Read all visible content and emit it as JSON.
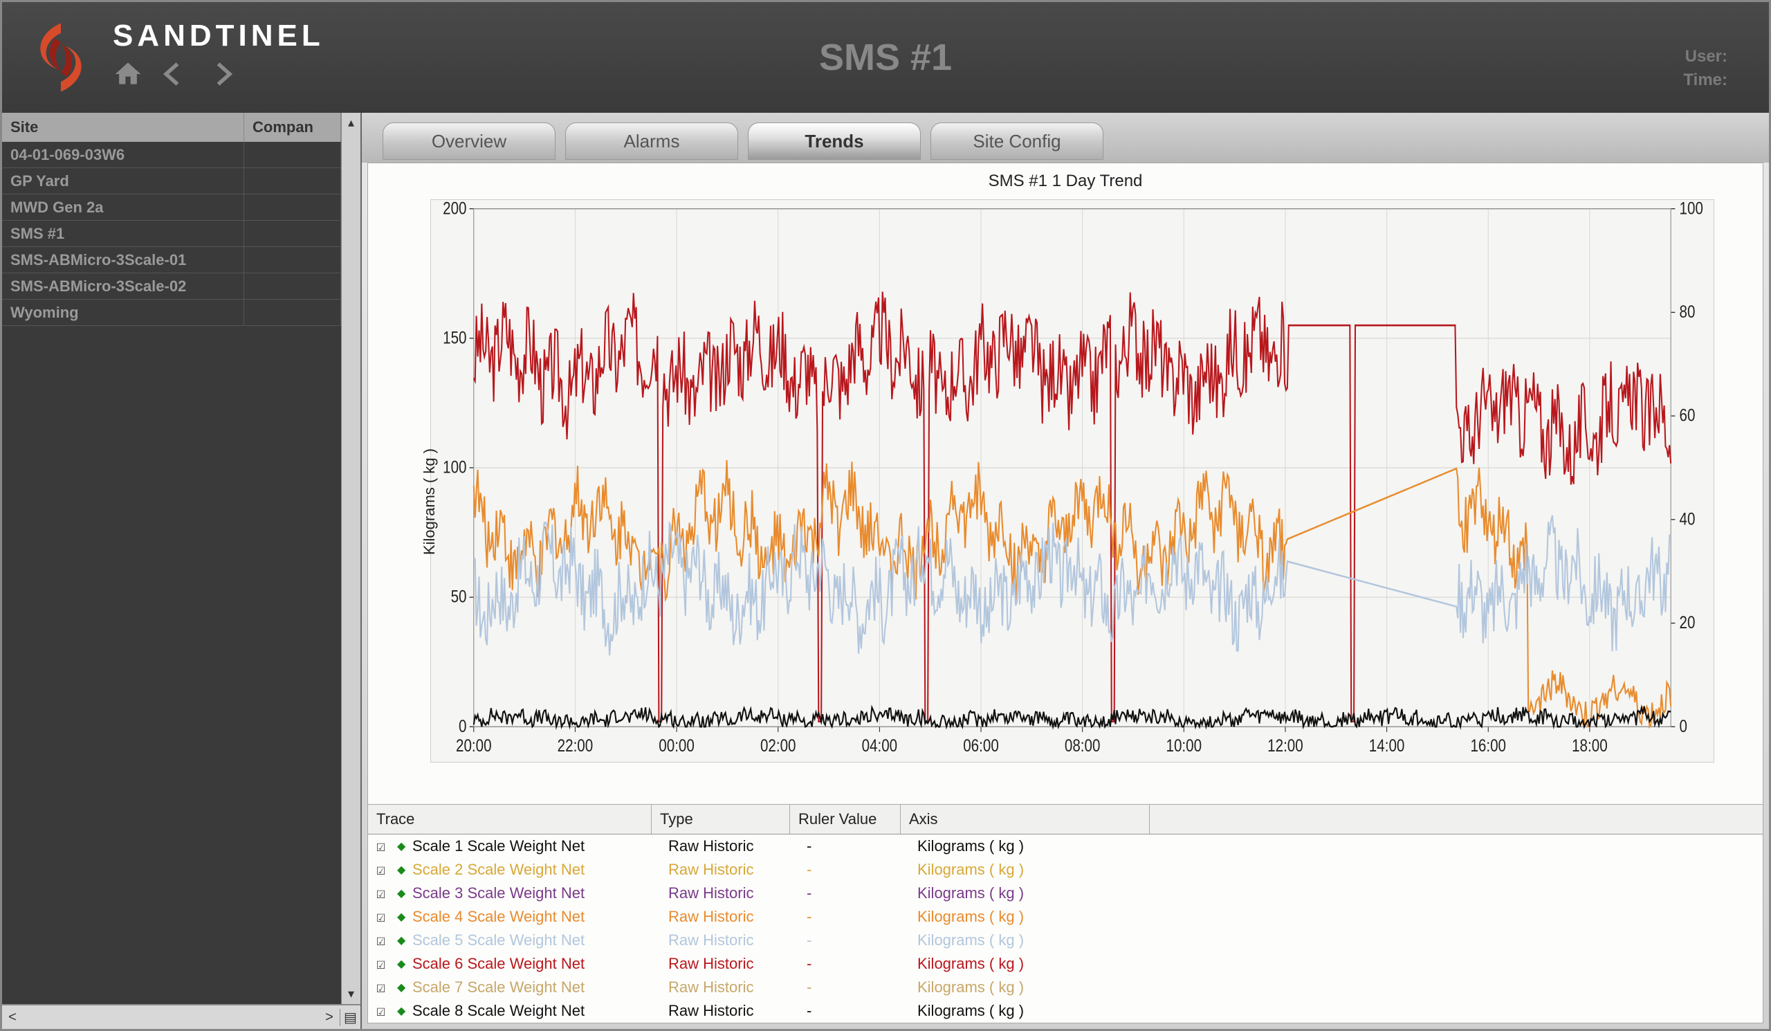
{
  "brand": "SANDTINEL",
  "header": {
    "page_title": "SMS #1",
    "user_label": "User:",
    "time_label": "Time:"
  },
  "sidebar": {
    "columns": {
      "site": "Site",
      "company": "Compan"
    },
    "rows": [
      {
        "site": "04-01-069-03W6",
        "company": ""
      },
      {
        "site": "GP Yard",
        "company": ""
      },
      {
        "site": "MWD Gen 2a",
        "company": ""
      },
      {
        "site": "SMS #1",
        "company": ""
      },
      {
        "site": "SMS-ABMicro-3Scale-01",
        "company": ""
      },
      {
        "site": "SMS-ABMicro-3Scale-02",
        "company": ""
      },
      {
        "site": "Wyoming",
        "company": ""
      }
    ]
  },
  "tabs": [
    {
      "label": "Overview",
      "active": false
    },
    {
      "label": "Alarms",
      "active": false
    },
    {
      "label": "Trends",
      "active": true
    },
    {
      "label": "Site Config",
      "active": false
    }
  ],
  "chart": {
    "title": "SMS #1 1 Day Trend",
    "ylabel_left": "Kilograms ( kg )",
    "left_axis": {
      "min": 0,
      "max": 200,
      "step": 50
    },
    "right_axis": {
      "min": 0,
      "max": 100,
      "step": 20
    },
    "x_ticks": [
      "20:00",
      "22:00",
      "00:00",
      "02:00",
      "04:00",
      "06:00",
      "08:00",
      "10:00",
      "12:00",
      "14:00",
      "16:00",
      "18:00"
    ],
    "background": "#f5f5f3",
    "grid_color": "#d8d8d5",
    "series": [
      {
        "name": "red",
        "color": "#b8171c",
        "width": 2,
        "base": 140,
        "amp": 20,
        "noise": 8,
        "spikes": [
          140,
          260,
          340,
          480,
          660
        ],
        "flat_segment": {
          "start": 0.68,
          "end": 0.82,
          "value": 155
        },
        "drop_after": {
          "x": 0.82,
          "to_base": 118,
          "to_amp": 18
        }
      },
      {
        "name": "orange",
        "color": "#e88b2d",
        "width": 2,
        "base": 75,
        "amp": 25,
        "noise": 6,
        "spikes": [],
        "gap": {
          "start": 0.68,
          "end": 0.82
        },
        "tail_dip": {
          "start": 0.88,
          "value": 10
        }
      },
      {
        "name": "lightblue",
        "color": "#b2c6dd",
        "width": 2,
        "base": 55,
        "amp": 20,
        "noise": 7,
        "spikes": [],
        "gap": {
          "start": 0.68,
          "end": 0.82
        }
      },
      {
        "name": "black",
        "color": "#111111",
        "width": 2,
        "base": 3,
        "amp": 3,
        "noise": 1.5,
        "spikes": []
      }
    ]
  },
  "trace_table": {
    "columns": {
      "trace": "Trace",
      "type": "Type",
      "ruler": "Ruler Value",
      "axis": "Axis"
    },
    "rows": [
      {
        "name": "Scale 1 Scale Weight Net",
        "type": "Raw Historic",
        "ruler": "-",
        "axis": "Kilograms ( kg )",
        "color": "#111111",
        "dot": "#1a8a1a"
      },
      {
        "name": "Scale 2 Scale Weight Net",
        "type": "Raw Historic",
        "ruler": "-",
        "axis": "Kilograms ( kg )",
        "color": "#d8a838",
        "dot": "#1a8a1a"
      },
      {
        "name": "Scale 3 Scale Weight Net",
        "type": "Raw Historic",
        "ruler": "-",
        "axis": "Kilograms ( kg )",
        "color": "#7a3a8a",
        "dot": "#1a8a1a"
      },
      {
        "name": "Scale 4 Scale Weight Net",
        "type": "Raw Historic",
        "ruler": "-",
        "axis": "Kilograms ( kg )",
        "color": "#e88b2d",
        "dot": "#1a8a1a"
      },
      {
        "name": "Scale 5 Scale Weight Net",
        "type": "Raw Historic",
        "ruler": "-",
        "axis": "Kilograms ( kg )",
        "color": "#b2c6dd",
        "dot": "#1a8a1a"
      },
      {
        "name": "Scale 6 Scale Weight Net",
        "type": "Raw Historic",
        "ruler": "-",
        "axis": "Kilograms ( kg )",
        "color": "#b8171c",
        "dot": "#1a8a1a"
      },
      {
        "name": "Scale 7 Scale Weight Net",
        "type": "Raw Historic",
        "ruler": "-",
        "axis": "Kilograms ( kg )",
        "color": "#c7a76a",
        "dot": "#1a8a1a"
      },
      {
        "name": "Scale 8 Scale Weight Net",
        "type": "Raw Historic",
        "ruler": "-",
        "axis": "Kilograms ( kg )",
        "color": "#111111",
        "dot": "#1a8a1a"
      }
    ]
  }
}
